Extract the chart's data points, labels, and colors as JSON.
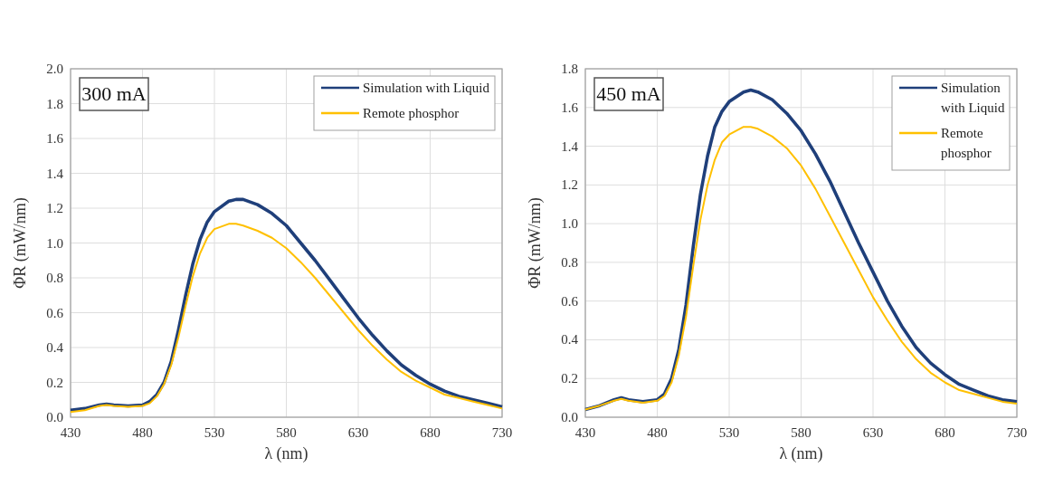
{
  "chart_data": [
    {
      "type": "line",
      "xlabel": "λ (nm)",
      "ylabel": "ΦR (mW/nm)",
      "annotations": [
        "300 mA"
      ],
      "xlim": [
        430,
        730
      ],
      "xticks": [
        430,
        480,
        530,
        580,
        630,
        680,
        730
      ],
      "ylim": [
        0,
        2
      ],
      "yticks": [
        {
          "value": 0,
          "label": "0.0"
        },
        {
          "value": 0.2,
          "label": "0.2"
        },
        {
          "value": 0.4,
          "label": "0.4"
        },
        {
          "value": 0.6,
          "label": "0.6"
        },
        {
          "value": 0.8,
          "label": "0.8"
        },
        {
          "value": 1,
          "label": "1.0"
        },
        {
          "value": 1.2,
          "label": "1.2"
        },
        {
          "value": 1.4,
          "label": "1.4"
        },
        {
          "value": 1.6,
          "label": "1.6"
        },
        {
          "value": 1.8,
          "label": "1.8"
        },
        {
          "value": 2,
          "label": "2.0"
        }
      ],
      "grid": true,
      "legend": "top right",
      "line_style": "solid",
      "marker": "none",
      "x": [
        430,
        440,
        450,
        455,
        460,
        470,
        480,
        485,
        490,
        495,
        500,
        505,
        510,
        515,
        520,
        525,
        530,
        540,
        545,
        550,
        560,
        570,
        580,
        590,
        600,
        610,
        620,
        630,
        640,
        650,
        660,
        670,
        680,
        690,
        700,
        710,
        720,
        730
      ],
      "series": [
        {
          "name": "Simulation with Liquid",
          "color": "#1f3f7a",
          "values": [
            0.04,
            0.05,
            0.07,
            0.075,
            0.07,
            0.065,
            0.07,
            0.09,
            0.13,
            0.2,
            0.32,
            0.5,
            0.7,
            0.88,
            1.02,
            1.12,
            1.18,
            1.24,
            1.25,
            1.25,
            1.22,
            1.17,
            1.1,
            1.0,
            0.9,
            0.79,
            0.68,
            0.57,
            0.47,
            0.38,
            0.3,
            0.24,
            0.19,
            0.15,
            0.12,
            0.1,
            0.08,
            0.06
          ]
        },
        {
          "name": "Remote phosphor",
          "color": "#ffc000",
          "values": [
            0.03,
            0.04,
            0.065,
            0.07,
            0.065,
            0.06,
            0.065,
            0.08,
            0.12,
            0.19,
            0.3,
            0.46,
            0.64,
            0.81,
            0.94,
            1.03,
            1.08,
            1.11,
            1.11,
            1.1,
            1.07,
            1.03,
            0.97,
            0.89,
            0.8,
            0.7,
            0.6,
            0.5,
            0.41,
            0.33,
            0.26,
            0.21,
            0.17,
            0.13,
            0.11,
            0.09,
            0.07,
            0.05
          ]
        }
      ]
    },
    {
      "type": "line",
      "xlabel": "λ (nm)",
      "ylabel": "ΦR (mW/nm)",
      "annotations": [
        "450 mA"
      ],
      "xlim": [
        430,
        730
      ],
      "xticks": [
        430,
        480,
        530,
        580,
        630,
        680,
        730
      ],
      "ylim": [
        0,
        1.8
      ],
      "yticks": [
        {
          "value": 0,
          "label": "0.0"
        },
        {
          "value": 0.2,
          "label": "0.2"
        },
        {
          "value": 0.4,
          "label": "0.4"
        },
        {
          "value": 0.6,
          "label": "0.6"
        },
        {
          "value": 0.8,
          "label": "0.8"
        },
        {
          "value": 1,
          "label": "1.0"
        },
        {
          "value": 1.2,
          "label": "1.2"
        },
        {
          "value": 1.4,
          "label": "1.4"
        },
        {
          "value": 1.6,
          "label": "1.6"
        },
        {
          "value": 1.8,
          "label": "1.8"
        }
      ],
      "grid": true,
      "legend": "top right",
      "line_style": "solid",
      "marker": "none",
      "x": [
        430,
        440,
        450,
        455,
        460,
        470,
        480,
        485,
        490,
        495,
        500,
        505,
        510,
        515,
        520,
        525,
        530,
        540,
        545,
        550,
        560,
        570,
        580,
        590,
        600,
        610,
        620,
        630,
        640,
        650,
        660,
        670,
        680,
        690,
        700,
        710,
        720,
        730
      ],
      "series": [
        {
          "name": "Simulation with Liquid",
          "color": "#1f3f7a",
          "values": [
            0.04,
            0.06,
            0.09,
            0.1,
            0.09,
            0.08,
            0.09,
            0.12,
            0.2,
            0.35,
            0.58,
            0.88,
            1.15,
            1.35,
            1.5,
            1.58,
            1.63,
            1.68,
            1.69,
            1.68,
            1.64,
            1.57,
            1.48,
            1.36,
            1.22,
            1.06,
            0.9,
            0.75,
            0.6,
            0.47,
            0.36,
            0.28,
            0.22,
            0.17,
            0.14,
            0.11,
            0.09,
            0.08
          ]
        },
        {
          "name": "Remote phosphor",
          "color": "#ffc000",
          "values": [
            0.04,
            0.06,
            0.085,
            0.095,
            0.085,
            0.075,
            0.085,
            0.11,
            0.18,
            0.32,
            0.52,
            0.78,
            1.02,
            1.2,
            1.33,
            1.42,
            1.46,
            1.5,
            1.5,
            1.49,
            1.45,
            1.39,
            1.3,
            1.18,
            1.04,
            0.9,
            0.76,
            0.62,
            0.5,
            0.39,
            0.3,
            0.23,
            0.18,
            0.14,
            0.12,
            0.1,
            0.08,
            0.07
          ]
        }
      ]
    }
  ]
}
